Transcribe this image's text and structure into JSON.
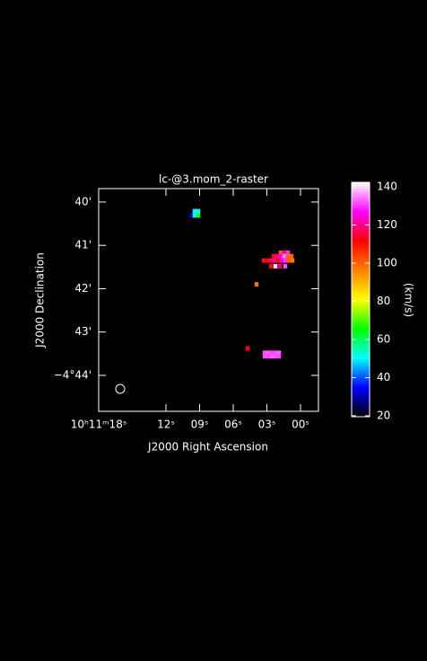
{
  "chart_data": {
    "type": "raster",
    "title": "lc-@3.mom_2-raster",
    "x_label": "J2000 Right Ascension",
    "y_label": "J2000 Declination",
    "xlim": [
      18,
      -1.6
    ],
    "ylim": [
      -44.83,
      -39.69
    ],
    "xticks": [
      {
        "value": 18,
        "label": "10ʰ11ᵐ18ˢ"
      },
      {
        "value": 12,
        "label": "12ˢ"
      },
      {
        "value": 9,
        "label": "09ˢ"
      },
      {
        "value": 6,
        "label": "06ˢ"
      },
      {
        "value": 3,
        "label": "03ˢ"
      },
      {
        "value": 0,
        "label": "00ˢ"
      }
    ],
    "yticks": [
      {
        "value": -40,
        "label": "40'"
      },
      {
        "value": -41,
        "label": "41'"
      },
      {
        "value": -42,
        "label": "42'"
      },
      {
        "value": -43,
        "label": "43'"
      },
      {
        "value": -44,
        "label": "−4°44'"
      }
    ],
    "x": [
      9.76,
      9.44,
      9.12,
      9.44,
      9.12,
      1.76,
      1.44,
      1.12,
      2.4,
      2.08,
      1.76,
      1.44,
      1.12,
      0.8,
      3.28,
      2.96,
      2.64,
      2.32,
      2.0,
      1.68,
      1.36,
      1.04,
      0.72,
      2.64,
      2.24,
      1.84,
      1.36,
      3.92,
      4.72,
      3.2,
      2.88,
      2.56,
      2.24,
      1.92,
      3.2,
      2.88,
      2.56,
      2.24,
      1.92
    ],
    "y": [
      -40.31,
      -40.31,
      -40.31,
      -40.21,
      -40.21,
      -41.17,
      -41.17,
      -41.17,
      -41.25,
      -41.25,
      -41.25,
      -41.25,
      -41.25,
      -41.25,
      -41.35,
      -41.35,
      -41.35,
      -41.35,
      -41.35,
      -41.35,
      -41.35,
      -41.35,
      -41.35,
      -41.48,
      -41.48,
      -41.48,
      -41.48,
      -41.9,
      -43.38,
      -43.48,
      -43.48,
      -43.48,
      -43.48,
      -43.48,
      -43.56,
      -43.56,
      -43.56,
      -43.56,
      -43.56
    ],
    "values": [
      30,
      50,
      68,
      50,
      52,
      100,
      120,
      130,
      110,
      120,
      125,
      135,
      100,
      100,
      115,
      112,
      118,
      122,
      110,
      125,
      130,
      100,
      98,
      110,
      140,
      118,
      132,
      98,
      112,
      132,
      133,
      131,
      132,
      133,
      132,
      131,
      133,
      132,
      131
    ],
    "colorbar": {
      "label": "(km/s)",
      "lim": [
        19.5,
        142.4
      ],
      "ticks": [
        20,
        40,
        60,
        80,
        100,
        120,
        140
      ],
      "colormap": [
        "#000000",
        "#0000ff",
        "#00ffff",
        "#00ff00",
        "#ffff00",
        "#ff8000",
        "#ff0000",
        "#ff00ff",
        "#ffffff"
      ]
    }
  }
}
